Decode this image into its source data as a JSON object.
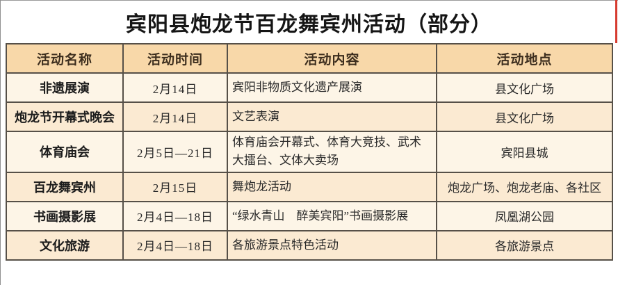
{
  "title": "宾阳县炮龙节百龙舞宾州活动（部分）",
  "colors": {
    "header_bg": "#f8d8a9",
    "row_light_bg": "#fdf5e7",
    "row_peach_bg": "#fbead2",
    "grid_border": "#565048",
    "accent_red": "#d63b2f"
  },
  "table": {
    "headers": [
      "活动名称",
      "活动时间",
      "活动内容",
      "活动地点"
    ],
    "rows": [
      {
        "name": "非遗展演",
        "time": "2月14日",
        "content": "宾阳非物质文化遗产展演",
        "location": "县文化广场"
      },
      {
        "name": "炮龙节开幕式晚会",
        "time": "2月14日",
        "content": "文艺表演",
        "location": "县文化广场"
      },
      {
        "name": "体育庙会",
        "time": "2月5日—21日",
        "content": "体育庙会开幕式、体育大竞技、武术大擂台、文体大卖场",
        "location": "宾阳县城"
      },
      {
        "name": "百龙舞宾州",
        "time": "2月15日",
        "content": "舞炮龙活动",
        "location": "炮龙广场、炮龙老庙、各社区"
      },
      {
        "name": "书画摄影展",
        "time": "2月4日—18日",
        "content": "“绿水青山　醉美宾阳”书画摄影展",
        "location": "凤凰湖公园"
      },
      {
        "name": "文化旅游",
        "time": "2月4日—18日",
        "content": "各旅游景点特色活动",
        "location": "各旅游景点"
      }
    ]
  }
}
